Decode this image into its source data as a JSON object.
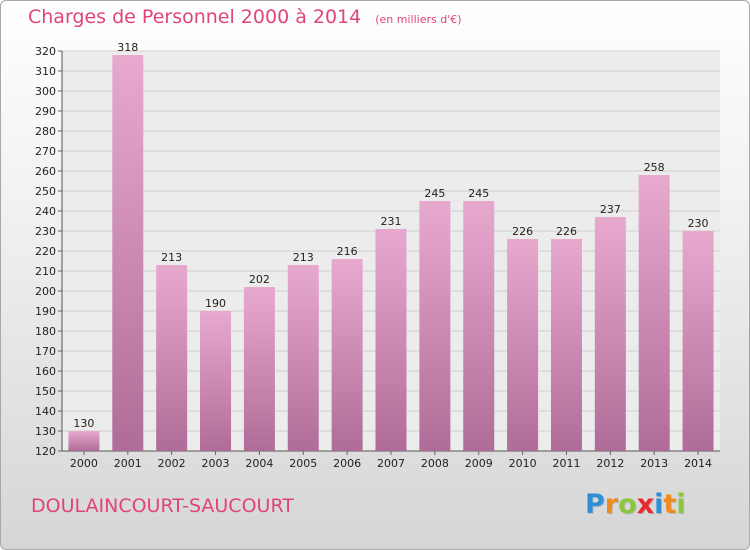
{
  "title": "Charges de Personnel 2000 à 2014",
  "unit": "(en milliers d'€)",
  "place": "DOULAINCOURT-SAUCOURT",
  "logo": {
    "letters": [
      "P",
      "r",
      "o",
      "x",
      "i",
      "t",
      "i"
    ],
    "colors": [
      "#2e8fd6",
      "#f08a1c",
      "#8cc63f",
      "#e8282d",
      "#2e8fd6",
      "#f08a1c",
      "#8cc63f"
    ]
  },
  "colors": {
    "bar_top": "#e8a9cf",
    "bar_bottom": "#b06c98",
    "grid": "#d0d0d0"
  },
  "chart_data": {
    "type": "bar",
    "categories": [
      "2000",
      "2001",
      "2002",
      "2003",
      "2004",
      "2005",
      "2006",
      "2007",
      "2008",
      "2009",
      "2010",
      "2011",
      "2012",
      "2013",
      "2014"
    ],
    "values": [
      130,
      318,
      213,
      190,
      202,
      213,
      216,
      231,
      245,
      245,
      226,
      226,
      237,
      258,
      230
    ],
    "ylim": [
      120,
      320
    ],
    "yticks": [
      120,
      130,
      140,
      150,
      160,
      170,
      180,
      190,
      200,
      210,
      220,
      230,
      240,
      250,
      260,
      270,
      280,
      290,
      300,
      310,
      320
    ],
    "grid": true,
    "title": "Charges de Personnel 2000 à 2014",
    "xlabel": "",
    "ylabel": ""
  }
}
